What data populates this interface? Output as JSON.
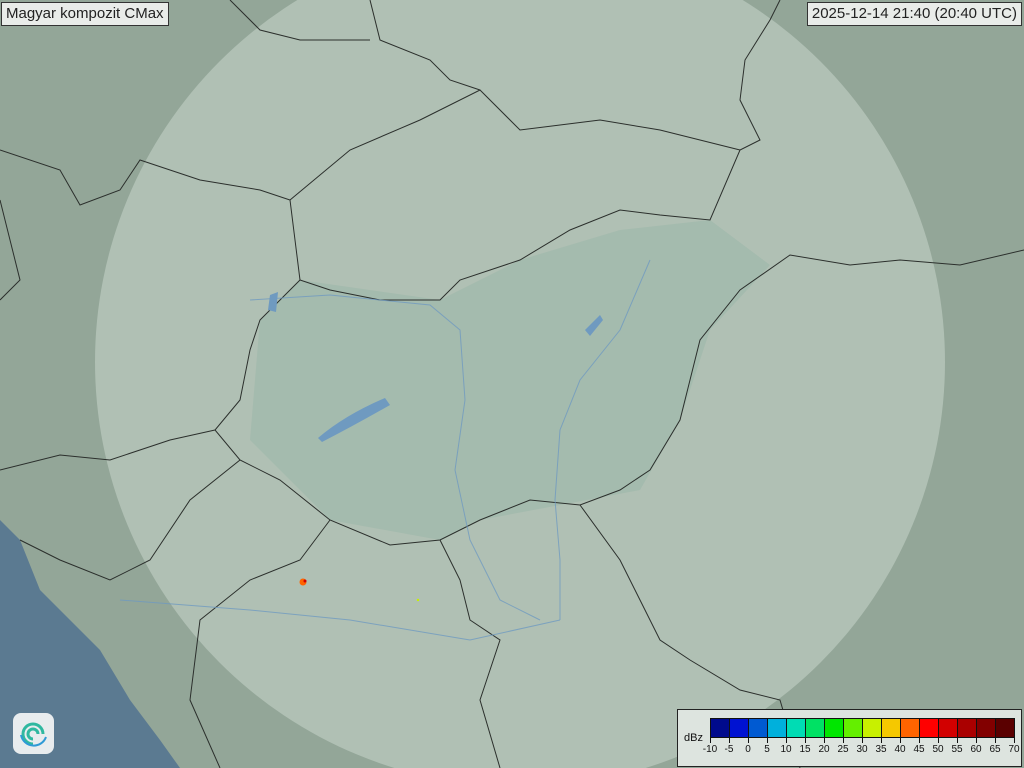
{
  "title": "Magyar kompozit  CMax",
  "timestamp": "2025-12-14 21:40 (20:40 UTC)",
  "legend": {
    "unit": "dBz",
    "ticks": [
      "-10",
      "-5",
      "0",
      "5",
      "10",
      "15",
      "20",
      "25",
      "30",
      "35",
      "40",
      "45",
      "50",
      "55",
      "60",
      "65",
      "70"
    ],
    "colors": [
      "#000a8c",
      "#0012d2",
      "#005ad2",
      "#00b0dc",
      "#00dcb4",
      "#00e164",
      "#00e600",
      "#64ef00",
      "#c8f000",
      "#f5c800",
      "#ff6400",
      "#ff0000",
      "#d20000",
      "#aa0000",
      "#820000",
      "#5a0000"
    ]
  },
  "map": {
    "land_color": "#93a698",
    "radar_coverage_color": "#dfe9e3",
    "sea_color": "#5b7a91",
    "water_color": "#6f9ac0",
    "border_color": "#2b2f2c"
  },
  "logo_icon": "swirl-logo-icon"
}
